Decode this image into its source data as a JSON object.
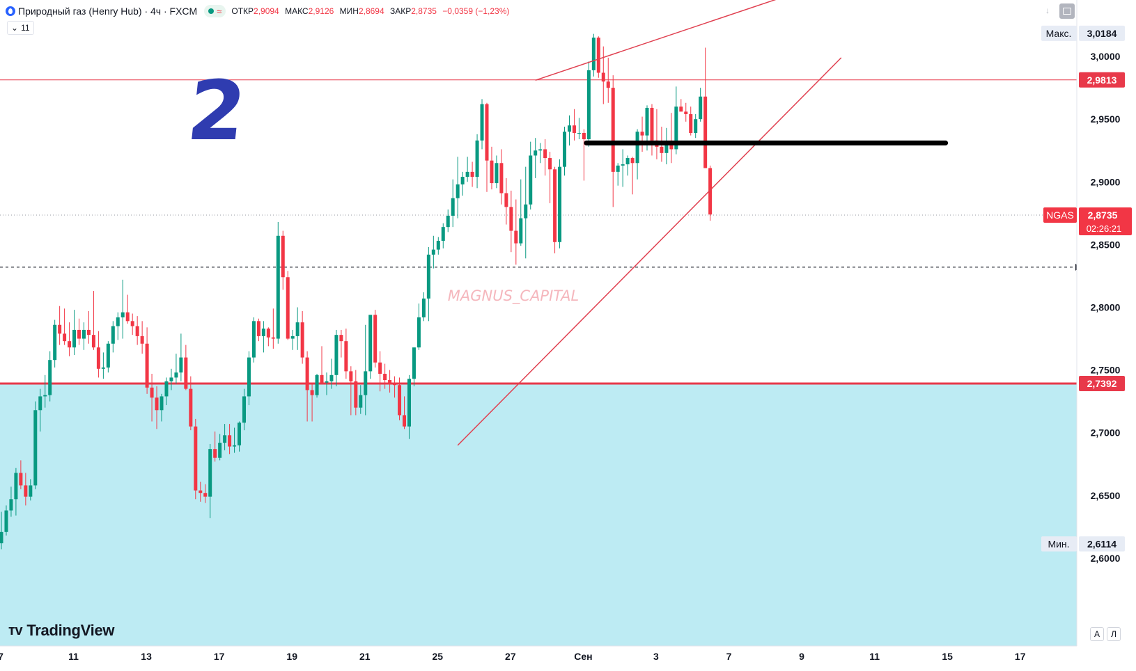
{
  "header": {
    "title": "Природный газ (Henry Hub) · 4ч · FXCM",
    "ohlc": [
      {
        "label": "ОТКР",
        "value": "2,9094"
      },
      {
        "label": "МАКС",
        "value": "2,9126"
      },
      {
        "label": "МИН",
        "value": "2,8694"
      },
      {
        "label": "ЗАКР",
        "value": "2,8735"
      },
      {
        "label": "",
        "value": "−0,0359 (−1,23%)"
      }
    ],
    "indicators_count": "11"
  },
  "brand": "TradingView",
  "colors": {
    "up": "#089981",
    "down": "#f23645",
    "zone": "#bdebf3",
    "annotation": "#e04050",
    "level": "#e8394a",
    "big_number": "#2f3cb0"
  },
  "axis_buttons": {
    "auto": "А",
    "log": "Л"
  },
  "annotations": {
    "big_number": "2",
    "watermark": "MAGNUS_CAPITAL",
    "max_label": "Макс.",
    "min_label": "Мин.",
    "symbol_tag": "NGAS",
    "countdown": "02:26:21"
  },
  "chart_data": {
    "type": "candlestick",
    "y_range": [
      2.555,
      3.04
    ],
    "y_ticks": [
      "3,0000",
      "2,9500",
      "2,9000",
      "2,8500",
      "2,8000",
      "2,7500",
      "2,7000",
      "2,6500",
      "2,6000"
    ],
    "price_labels": [
      {
        "text": "3,0184",
        "value": 3.0184,
        "kind": "max"
      },
      {
        "text": "2,9813",
        "value": 2.9813,
        "kind": "level"
      },
      {
        "text": "2,8735",
        "value": 2.8735,
        "kind": "last"
      },
      {
        "text": "2,7392",
        "value": 2.7392,
        "kind": "level"
      },
      {
        "text": "2,6114",
        "value": 2.6114,
        "kind": "min"
      }
    ],
    "x_labels": [
      {
        "text": "7",
        "bar": 0
      },
      {
        "text": "11",
        "bar": 15
      },
      {
        "text": "13",
        "bar": 30
      },
      {
        "text": "17",
        "bar": 45
      },
      {
        "text": "19",
        "bar": 60
      },
      {
        "text": "21",
        "bar": 75
      },
      {
        "text": "25",
        "bar": 90
      },
      {
        "text": "27",
        "bar": 105
      },
      {
        "text": "Сен",
        "bar": 120
      },
      {
        "text": "3",
        "bar": 135
      },
      {
        "text": "7",
        "bar": 150
      },
      {
        "text": "9",
        "bar": 165
      },
      {
        "text": "11",
        "bar": 180
      },
      {
        "text": "15",
        "bar": 195
      },
      {
        "text": "17",
        "bar": 210
      }
    ],
    "horizontal_levels": [
      {
        "value": 2.9813,
        "style": "thin-red"
      },
      {
        "value": 2.8735,
        "style": "dotted"
      },
      {
        "value": 2.832,
        "style": "dashed-black"
      },
      {
        "value": 2.7392,
        "style": "thick-red"
      }
    ],
    "support_zone": [
      2.555,
      2.7392
    ],
    "drawings": [
      {
        "type": "line",
        "from": [
          110,
          2.981
        ],
        "to": [
          170,
          3.059
        ]
      },
      {
        "type": "line",
        "from": [
          94,
          2.69
        ],
        "to": [
          173,
          2.999
        ]
      },
      {
        "type": "line",
        "from": [
          120.5,
          2.931
        ],
        "to": [
          194.5,
          2.931
        ],
        "style": "thick-black"
      }
    ],
    "candles": [
      [
        2.612,
        2.637,
        2.607,
        2.621
      ],
      [
        2.621,
        2.642,
        2.618,
        2.638
      ],
      [
        2.638,
        2.657,
        2.633,
        2.647
      ],
      [
        2.647,
        2.672,
        2.634,
        2.668
      ],
      [
        2.668,
        2.678,
        2.655,
        2.658
      ],
      [
        2.658,
        2.668,
        2.642,
        2.649
      ],
      [
        2.649,
        2.663,
        2.646,
        2.658
      ],
      [
        2.658,
        2.725,
        2.655,
        2.718
      ],
      [
        2.718,
        2.735,
        2.701,
        2.729
      ],
      [
        2.729,
        2.746,
        2.72,
        2.73
      ],
      [
        2.73,
        2.765,
        2.725,
        2.758
      ],
      [
        2.758,
        2.79,
        2.752,
        2.786
      ],
      [
        2.786,
        2.801,
        2.77,
        2.779
      ],
      [
        2.779,
        2.799,
        2.77,
        2.773
      ],
      [
        2.773,
        2.788,
        2.761,
        2.768
      ],
      [
        2.768,
        2.798,
        2.762,
        2.782
      ],
      [
        2.782,
        2.791,
        2.77,
        2.775
      ],
      [
        2.775,
        2.788,
        2.766,
        2.782
      ],
      [
        2.782,
        2.797,
        2.771,
        2.778
      ],
      [
        2.778,
        2.813,
        2.766,
        2.768
      ],
      [
        2.768,
        2.781,
        2.744,
        2.751
      ],
      [
        2.751,
        2.764,
        2.743,
        2.752
      ],
      [
        2.752,
        2.773,
        2.748,
        2.771
      ],
      [
        2.771,
        2.789,
        2.764,
        2.785
      ],
      [
        2.785,
        2.796,
        2.774,
        2.792
      ],
      [
        2.792,
        2.822,
        2.775,
        2.796
      ],
      [
        2.796,
        2.81,
        2.787,
        2.789
      ],
      [
        2.789,
        2.795,
        2.778,
        2.785
      ],
      [
        2.785,
        2.793,
        2.77,
        2.777
      ],
      [
        2.777,
        2.789,
        2.763,
        2.771
      ],
      [
        2.771,
        2.784,
        2.731,
        2.736
      ],
      [
        2.736,
        2.747,
        2.709,
        2.728
      ],
      [
        2.728,
        2.737,
        2.703,
        2.718
      ],
      [
        2.718,
        2.731,
        2.709,
        2.729
      ],
      [
        2.729,
        2.744,
        2.722,
        2.741
      ],
      [
        2.741,
        2.751,
        2.734,
        2.744
      ],
      [
        2.744,
        2.763,
        2.739,
        2.748
      ],
      [
        2.748,
        2.779,
        2.741,
        2.76
      ],
      [
        2.76,
        2.77,
        2.734,
        2.735
      ],
      [
        2.735,
        2.745,
        2.702,
        2.705
      ],
      [
        2.705,
        2.711,
        2.647,
        2.654
      ],
      [
        2.654,
        2.661,
        2.645,
        2.652
      ],
      [
        2.652,
        2.659,
        2.644,
        2.649
      ],
      [
        2.649,
        2.691,
        2.632,
        2.687
      ],
      [
        2.687,
        2.701,
        2.677,
        2.68
      ],
      [
        2.68,
        2.699,
        2.678,
        2.692
      ],
      [
        2.692,
        2.707,
        2.686,
        2.698
      ],
      [
        2.698,
        2.707,
        2.683,
        2.689
      ],
      [
        2.689,
        2.704,
        2.684,
        2.69
      ],
      [
        2.69,
        2.709,
        2.685,
        2.708
      ],
      [
        2.708,
        2.735,
        2.702,
        2.729
      ],
      [
        2.729,
        2.765,
        2.722,
        2.76
      ],
      [
        2.76,
        2.792,
        2.756,
        2.789
      ],
      [
        2.789,
        2.791,
        2.773,
        2.777
      ],
      [
        2.777,
        2.789,
        2.764,
        2.783
      ],
      [
        2.783,
        2.784,
        2.769,
        2.776
      ],
      [
        2.776,
        2.799,
        2.767,
        2.775
      ],
      [
        2.775,
        2.868,
        2.771,
        2.857
      ],
      [
        2.857,
        2.861,
        2.814,
        2.824
      ],
      [
        2.824,
        2.829,
        2.774,
        2.775
      ],
      [
        2.775,
        2.782,
        2.766,
        2.777
      ],
      [
        2.777,
        2.8,
        2.766,
        2.788
      ],
      [
        2.788,
        2.797,
        2.755,
        2.76
      ],
      [
        2.76,
        2.765,
        2.709,
        2.734
      ],
      [
        2.734,
        2.74,
        2.709,
        2.73
      ],
      [
        2.73,
        2.747,
        2.728,
        2.746
      ],
      [
        2.746,
        2.769,
        2.74,
        2.74
      ],
      [
        2.74,
        2.748,
        2.73,
        2.741
      ],
      [
        2.741,
        2.759,
        2.735,
        2.746
      ],
      [
        2.746,
        2.782,
        2.737,
        2.778
      ],
      [
        2.778,
        2.782,
        2.76,
        2.773
      ],
      [
        2.773,
        2.783,
        2.743,
        2.749
      ],
      [
        2.749,
        2.753,
        2.714,
        2.741
      ],
      [
        2.741,
        2.75,
        2.714,
        2.72
      ],
      [
        2.72,
        2.738,
        2.715,
        2.73
      ],
      [
        2.73,
        2.786,
        2.714,
        2.749
      ],
      [
        2.749,
        2.793,
        2.743,
        2.794
      ],
      [
        2.794,
        2.798,
        2.752,
        2.756
      ],
      [
        2.756,
        2.765,
        2.733,
        2.747
      ],
      [
        2.747,
        2.755,
        2.735,
        2.742
      ],
      [
        2.742,
        2.75,
        2.732,
        2.739
      ],
      [
        2.739,
        2.745,
        2.728,
        2.738
      ],
      [
        2.738,
        2.744,
        2.71,
        2.714
      ],
      [
        2.714,
        2.729,
        2.703,
        2.705
      ],
      [
        2.705,
        2.746,
        2.695,
        2.743
      ],
      [
        2.743,
        2.768,
        2.737,
        2.768
      ],
      [
        2.768,
        2.803,
        2.766,
        2.792
      ],
      [
        2.792,
        2.812,
        2.789,
        2.807
      ],
      [
        2.807,
        2.848,
        2.789,
        2.842
      ],
      [
        2.842,
        2.857,
        2.831,
        2.846
      ],
      [
        2.846,
        2.856,
        2.842,
        2.853
      ],
      [
        2.853,
        2.867,
        2.847,
        2.864
      ],
      [
        2.864,
        2.878,
        2.86,
        2.873
      ],
      [
        2.873,
        2.902,
        2.864,
        2.887
      ],
      [
        2.887,
        2.92,
        2.871,
        2.898
      ],
      [
        2.898,
        2.908,
        2.889,
        2.904
      ],
      [
        2.904,
        2.92,
        2.9,
        2.908
      ],
      [
        2.908,
        2.916,
        2.896,
        2.904
      ],
      [
        2.904,
        2.938,
        2.895,
        2.933
      ],
      [
        2.933,
        2.966,
        2.926,
        2.962
      ],
      [
        2.962,
        2.963,
        2.892,
        2.917
      ],
      [
        2.917,
        2.928,
        2.894,
        2.899
      ],
      [
        2.899,
        2.921,
        2.895,
        2.915
      ],
      [
        2.915,
        2.926,
        2.882,
        2.891
      ],
      [
        2.891,
        2.903,
        2.866,
        2.88
      ],
      [
        2.88,
        2.893,
        2.844,
        2.861
      ],
      [
        2.861,
        2.886,
        2.834,
        2.851
      ],
      [
        2.851,
        2.902,
        2.849,
        2.871
      ],
      [
        2.871,
        2.912,
        2.839,
        2.882
      ],
      [
        2.882,
        2.932,
        2.878,
        2.921
      ],
      [
        2.921,
        2.935,
        2.903,
        2.925
      ],
      [
        2.925,
        2.931,
        2.915,
        2.926
      ],
      [
        2.926,
        2.934,
        2.905,
        2.919
      ],
      [
        2.919,
        2.924,
        2.883,
        2.91
      ],
      [
        2.91,
        2.912,
        2.843,
        2.852
      ],
      [
        2.852,
        2.918,
        2.847,
        2.912
      ],
      [
        2.912,
        2.944,
        2.905,
        2.94
      ],
      [
        2.94,
        2.953,
        2.929,
        2.945
      ],
      [
        2.945,
        2.958,
        2.933,
        2.939
      ],
      [
        2.939,
        2.951,
        2.934,
        2.939
      ],
      [
        2.939,
        2.942,
        2.901,
        2.934
      ],
      [
        2.934,
        2.996,
        2.928,
        2.989
      ],
      [
        2.989,
        3.018,
        2.984,
        3.015
      ],
      [
        3.015,
        3.016,
        2.983,
        2.987
      ],
      [
        2.987,
        3.008,
        2.962,
        2.98
      ],
      [
        2.98,
        2.999,
        2.963,
        2.975
      ],
      [
        2.975,
        2.985,
        2.88,
        2.908
      ],
      [
        2.908,
        2.915,
        2.897,
        2.913
      ],
      [
        2.913,
        2.926,
        2.896,
        2.914
      ],
      [
        2.914,
        2.921,
        2.905,
        2.919
      ],
      [
        2.919,
        2.92,
        2.89,
        2.915
      ],
      [
        2.915,
        2.942,
        2.902,
        2.94
      ],
      [
        2.94,
        2.952,
        2.924,
        2.937
      ],
      [
        2.937,
        2.961,
        2.925,
        2.959
      ],
      [
        2.959,
        2.962,
        2.921,
        2.933
      ],
      [
        2.933,
        2.958,
        2.918,
        2.928
      ],
      [
        2.928,
        2.944,
        2.916,
        2.923
      ],
      [
        2.923,
        2.943,
        2.914,
        2.932
      ],
      [
        2.932,
        2.955,
        2.915,
        2.926
      ],
      [
        2.926,
        2.976,
        2.922,
        2.96
      ],
      [
        2.96,
        2.966,
        2.958,
        2.956
      ],
      [
        2.956,
        2.963,
        2.948,
        2.954
      ],
      [
        2.954,
        2.96,
        2.937,
        2.939
      ],
      [
        2.939,
        2.954,
        2.935,
        2.95
      ],
      [
        2.95,
        2.975,
        2.948,
        2.968
      ],
      [
        2.968,
        3.007,
        2.911,
        2.911
      ],
      [
        2.911,
        2.913,
        2.869,
        2.874
      ]
    ]
  }
}
